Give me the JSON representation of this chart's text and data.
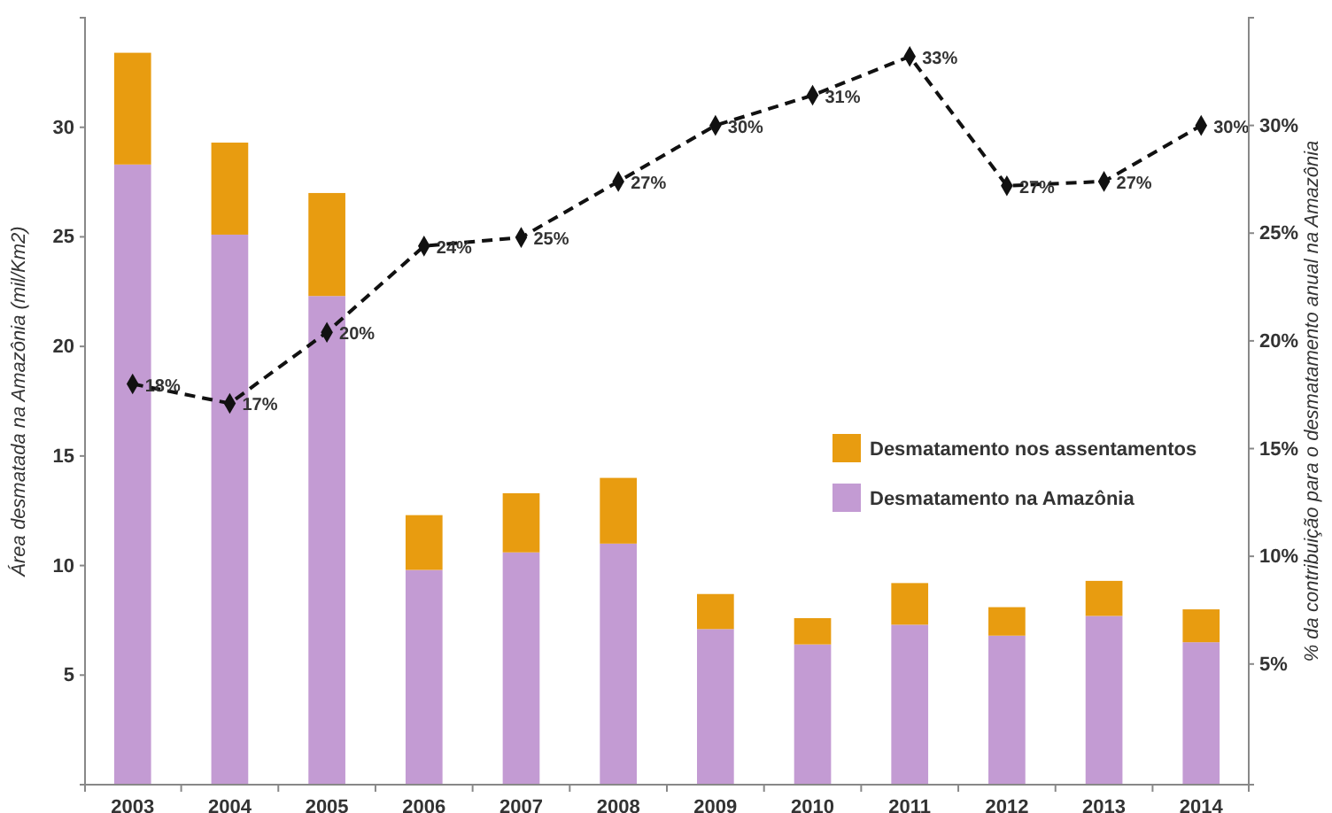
{
  "chart_data": {
    "type": "bar",
    "stacked": true,
    "ylabel": "Área desmatada na Amazônia (mil/Km2)",
    "y2label": "% da contribuição para o desmatamento anual na Amazônia",
    "categories": [
      "2003",
      "2004",
      "2005",
      "2006",
      "2007",
      "2008",
      "2009",
      "2010",
      "2011",
      "2012",
      "2013",
      "2014"
    ],
    "series": [
      {
        "name": "Desmatamento na Amazônia",
        "color": "#c39bd3",
        "values": [
          28.3,
          25.1,
          22.3,
          9.8,
          10.6,
          11.0,
          7.1,
          6.4,
          7.3,
          6.8,
          7.7,
          6.5
        ]
      },
      {
        "name": "Desmatamento nos assentamentos",
        "color": "#e89c10",
        "values": [
          5.1,
          4.2,
          4.7,
          2.5,
          2.7,
          3.0,
          1.6,
          1.2,
          1.9,
          1.3,
          1.6,
          1.5
        ]
      },
      {
        "type": "line",
        "axis": "y2",
        "color": "#111111",
        "marker": "diamond",
        "line_style": "dashed",
        "values": [
          18.0,
          17.1,
          20.4,
          24.4,
          24.8,
          27.4,
          30.0,
          31.4,
          33.2,
          27.2,
          27.4,
          30.0
        ],
        "value_labels": [
          "18%",
          "17%",
          "20%",
          "24%",
          "25%",
          "27%",
          "30%",
          "31%",
          "33%",
          "27%",
          "27%",
          "30%"
        ]
      }
    ],
    "ylim": [
      0,
      35
    ],
    "yticks": [
      5,
      10,
      15,
      20,
      25,
      30
    ],
    "y2lim": [
      -0.6,
      35
    ],
    "y2ticks": [
      {
        "value": 5,
        "label": "5%"
      },
      {
        "value": 10,
        "label": "10%"
      },
      {
        "value": 15,
        "label": "15%"
      },
      {
        "value": 20,
        "label": "20%"
      },
      {
        "value": 25,
        "label": "25%"
      },
      {
        "value": 30,
        "label": "30%"
      }
    ],
    "legend": "right",
    "grid": false
  }
}
